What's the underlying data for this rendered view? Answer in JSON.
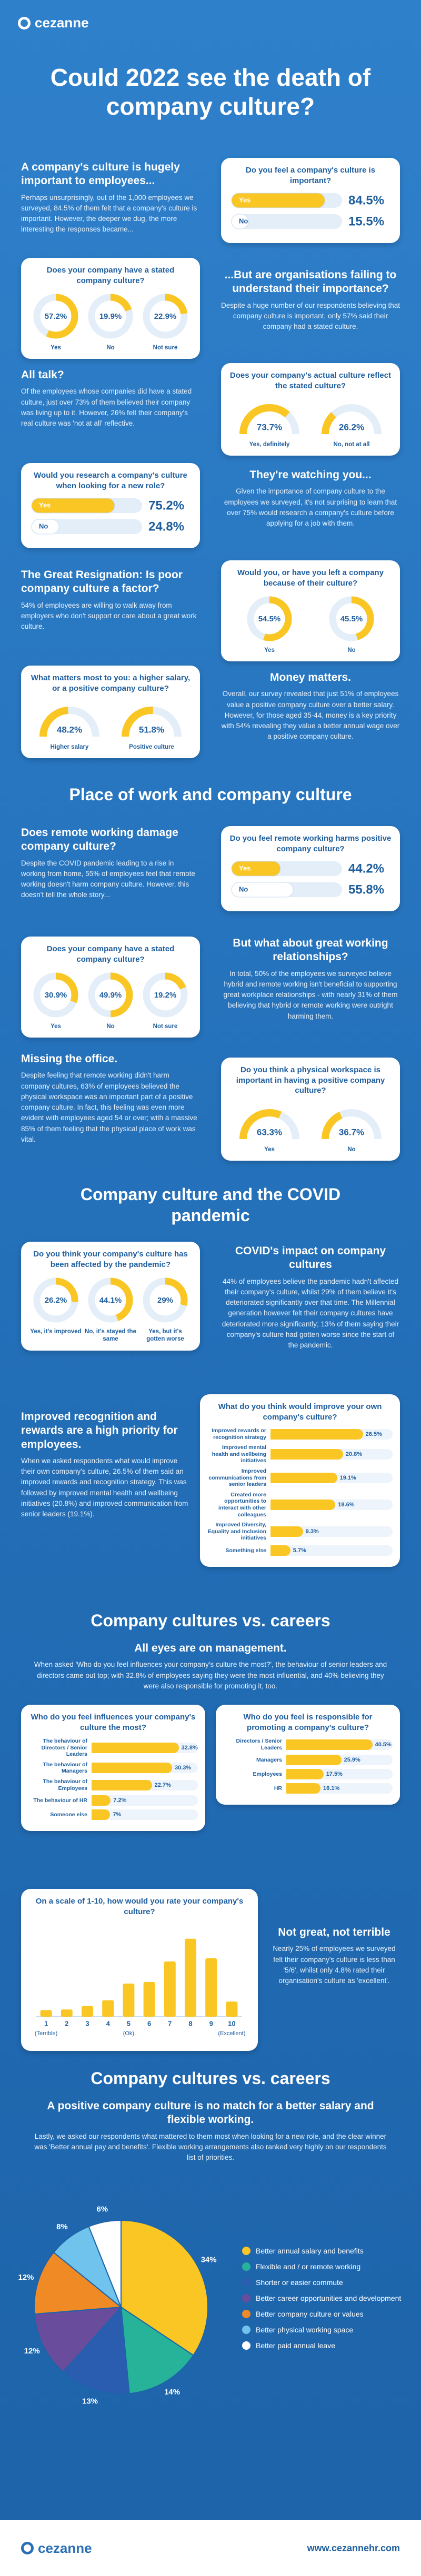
{
  "header": {
    "logo": "cezanne",
    "title": "Could 2022 see the death of company culture?"
  },
  "b1": {
    "heading": "A company's culture is hugely important to employees...",
    "body": "Perhaps unsurprisingly, out of the 1,000 employees we surveyed, 84.5% of them felt that a company's culture is important. However, the deeper we dug, the more interesting the responses became..."
  },
  "c1": {
    "type": "pill",
    "title": "Do you feel a company's culture is important?",
    "categories": [
      "Yes",
      "No"
    ],
    "values": [
      84.5,
      15.5
    ],
    "value_labels": [
      "84.5%",
      "15.5%"
    ],
    "xlim": [
      0,
      100
    ],
    "color": "#f9c623"
  },
  "c2": {
    "type": "donut",
    "title": "Does your company have a stated company culture?",
    "categories": [
      "Yes",
      "No",
      "Not sure"
    ],
    "values": [
      57.2,
      19.9,
      22.9
    ],
    "value_labels": [
      "57.2%",
      "19.9%",
      "22.9%"
    ],
    "color": "#f9c623"
  },
  "b2": {
    "heading": "...But are organisations failing to understand their importance?",
    "body": "Despite a huge number of our respondents believing that company culture is important, only 57% said their company had a stated culture."
  },
  "b3": {
    "heading": "All talk?",
    "body": "Of the employees whose companies did have a stated culture, just over 73% of them believed their company was living up to it. However, 26% felt their company's real culture was 'not at all' reflective."
  },
  "c3": {
    "type": "gauge",
    "title": "Does your company's actual culture reflect the stated culture?",
    "categories": [
      "Yes, definitely",
      "No, not at all"
    ],
    "values": [
      73.7,
      26.2
    ],
    "value_labels": [
      "73.7%",
      "26.2%"
    ],
    "color": "#f9c623"
  },
  "c4": {
    "type": "pill",
    "title": "Would you research a company's culture when looking for a new role?",
    "categories": [
      "Yes",
      "No"
    ],
    "values": [
      75.2,
      24.8
    ],
    "value_labels": [
      "75.2%",
      "24.8%"
    ],
    "xlim": [
      0,
      100
    ],
    "color": "#f9c623"
  },
  "b4": {
    "heading": "They're watching you...",
    "body": "Given the importance of company culture to the employees we surveyed, it's not surprising to learn that over 75% would research a company's culture before applying for a job with them."
  },
  "b5": {
    "heading": "The Great Resignation: Is poor company culture a factor?",
    "body": "54% of employees are willing to walk away from employers who don't support or care about a great work culture."
  },
  "c5": {
    "type": "donut",
    "title": "Would you, or have you left a company because of their culture?",
    "categories": [
      "Yes",
      "No"
    ],
    "values": [
      54.5,
      45.5
    ],
    "value_labels": [
      "54.5%",
      "45.5%"
    ],
    "color": "#f9c623"
  },
  "c6": {
    "type": "gauge",
    "title": "What matters most to you: a higher salary, or a positive company culture?",
    "categories": [
      "Higher salary",
      "Positive culture"
    ],
    "values": [
      48.2,
      51.8
    ],
    "value_labels": [
      "48.2%",
      "51.8%"
    ],
    "color": "#f9c623"
  },
  "b6": {
    "heading": "Money matters.",
    "body": "Overall, our survey revealed that just 51% of employees value a positive company culture over a better salary. However, for those aged 35-44, money is a key priority with 54% revealing they value a better annual wage over a positive company culture."
  },
  "h1": "Place of work and company culture",
  "b7": {
    "heading": "Does remote working damage company culture?",
    "body": "Despite the COVID pandemic leading to a rise in working from home, 55% of employees feel that remote working doesn't harm company culture. However, this doesn't tell the whole story..."
  },
  "c7": {
    "type": "pill",
    "title": "Do you feel remote working harms positive company culture?",
    "categories": [
      "Yes",
      "No"
    ],
    "values": [
      44.2,
      55.8
    ],
    "value_labels": [
      "44.2%",
      "55.8%"
    ],
    "xlim": [
      0,
      100
    ],
    "color": "#f9c623"
  },
  "c8": {
    "type": "donut",
    "title": "Does your company have a stated company culture?",
    "categories": [
      "Yes",
      "No",
      "Not sure"
    ],
    "values": [
      30.9,
      49.9,
      19.2
    ],
    "value_labels": [
      "30.9%",
      "49.9%",
      "19.2%"
    ],
    "color": "#f9c623"
  },
  "b8": {
    "heading": "But what about great working relationships?",
    "body": "In total, 50% of the employees we surveyed believe hybrid and remote working isn't beneficial to supporting great workplace relationships - with nearly 31% of them believing that hybrid or remote working were outright harming them."
  },
  "b9": {
    "heading": "Missing the office.",
    "body": "Despite feeling that remote working didn't harm company cultures, 63% of employees believed the physical workspace was an important part of a positive company culture. In fact, this feeling was even more evident with employees aged 54 or over; with a massive 85% of them feeling that the physical place of work was vital."
  },
  "c9": {
    "type": "gauge",
    "title": "Do you think a physical workspace is important in having a positive company culture?",
    "categories": [
      "Yes",
      "No"
    ],
    "values": [
      63.3,
      36.7
    ],
    "value_labels": [
      "63.3%",
      "36.7%"
    ],
    "color": "#f9c623"
  },
  "h2": "Company culture and the COVID pandemic",
  "c10": {
    "type": "donut",
    "title": "Do you think your company's culture has been affected by the pandemic?",
    "categories": [
      "Yes, it's improved",
      "No, it's stayed the same",
      "Yes, but it's gotten worse"
    ],
    "values": [
      26.2,
      44.1,
      29
    ],
    "value_labels": [
      "26.2%",
      "44.1%",
      "29%"
    ],
    "color": "#f9c623"
  },
  "b10": {
    "heading": "COVID's impact on company cultures",
    "body": "44% of employees believe the pandemic hadn't affected their company's culture, whilst 29% of them believe it's deteriorated significantly over that time. The Millennial generation however felt their company cultures have deteriorated more significantly; 13% of them saying their company's culture had gotten worse since the start of the pandemic."
  },
  "b11": {
    "heading": "Improved recognition and rewards are a high priority for employees.",
    "body": "When we asked respondents what would improve their own company's culture, 26.5% of them said an improved rewards and recognition strategy. This was followed by improved mental health and wellbeing initiatives (20.8%) and improved communication from senior leaders (19.1%)."
  },
  "c11": {
    "type": "hbar",
    "title": "What do you think would improve your own company's culture?",
    "categories": [
      "Improved rewards or recognition strategy",
      "Improved mental health and wellbeing initiatives",
      "Improved communications from senior leaders",
      "Created more opportunities to interact with other colleagues",
      "Improved Diversity, Equality and Inclusion initiatives",
      "Something else"
    ],
    "values": [
      26.5,
      20.8,
      19.1,
      18.6,
      9.3,
      5.7
    ],
    "value_labels": [
      "26.5%",
      "20.8%",
      "19.1%",
      "18.6%",
      "9.3%",
      "5.7%"
    ],
    "xlim": [
      0,
      35
    ],
    "color": "#f9c623"
  },
  "h3": "Company cultures vs. careers",
  "b12": {
    "heading": "All eyes are on management.",
    "body": "When asked 'Who do you feel influences your company's culture the most?', the behaviour of senior leaders and directors came out top; with 32.8% of employees saying they were the most influential, and 40% believing they were also responsible for promoting it, too."
  },
  "c12": {
    "type": "hbar",
    "title": "Who do you feel influences your company's culture the most?",
    "categories": [
      "The behaviour of Directors / Senior Leaders",
      "The behaviour of Managers",
      "The behaviour of Employees",
      "The behaviour of HR",
      "Someone else"
    ],
    "values": [
      32.8,
      30.3,
      22.7,
      7.2,
      7
    ],
    "value_labels": [
      "32.8%",
      "30.3%",
      "22.7%",
      "7.2%",
      "7%"
    ],
    "xlim": [
      0,
      40
    ],
    "color": "#f9c623"
  },
  "c13": {
    "type": "hbar",
    "title": "Who do you feel is responsible for promoting a company's culture?",
    "categories": [
      "Directors / Senior Leaders",
      "Managers",
      "Employees",
      "HR"
    ],
    "values": [
      40.5,
      25.9,
      17.5,
      16.1
    ],
    "value_labels": [
      "40.5%",
      "25.9%",
      "17.5%",
      "16.1%"
    ],
    "xlim": [
      0,
      50
    ],
    "color": "#f9c623"
  },
  "c14": {
    "type": "column",
    "title": "On a scale of 1-10, how would you rate your company's culture?",
    "categories": [
      "1",
      "2",
      "3",
      "4",
      "5",
      "6",
      "7",
      "8",
      "9",
      "10"
    ],
    "category_notes": [
      "(Terrible)",
      null,
      null,
      null,
      "(Ok)",
      null,
      null,
      null,
      null,
      "(Excellent)"
    ],
    "values": [
      2.1,
      2.3,
      3.4,
      5.2,
      10.5,
      11.0,
      17.5,
      24.7,
      18.5,
      4.8
    ],
    "ylim": [
      0,
      28
    ],
    "color": "#f9c623"
  },
  "b13": {
    "heading": "Not great, not terrible",
    "body": "Nearly 25% of employees we surveyed felt their company's culture is less than '5/6', whilst only 4.8% rated their organisation's culture as 'excellent'."
  },
  "h4": "Company cultures vs. careers",
  "b14": {
    "heading": "A positive company culture is no match for a better salary and flexible working.",
    "body": "Lastly, we asked our respondents what mattered to them most when looking for a new role, and the clear winner was 'Better annual pay and benefits'. Flexible working arrangements also ranked very highly on our respondents list of priorities."
  },
  "c15": {
    "type": "pie",
    "categories": [
      "Better annual salary and benefits",
      "Flexible and / or remote working",
      "Shorter or easier commute",
      "Better career opportunities and development",
      "Better company culture or values",
      "Better physical working space",
      "Better paid annual leave"
    ],
    "values": [
      34,
      14,
      13,
      12,
      12,
      8,
      6
    ],
    "value_labels": [
      "34%",
      "14%",
      "13%",
      "12%",
      "12%",
      "8%",
      "6%"
    ],
    "colors": [
      "#f9c623",
      "#27b39a",
      "#2a5db0",
      "#6a4c9c",
      "#f08a24",
      "#6fc3ec",
      "#ffffff"
    ]
  },
  "footer": {
    "logo": "cezanne",
    "url": "www.cezannehr.com"
  }
}
